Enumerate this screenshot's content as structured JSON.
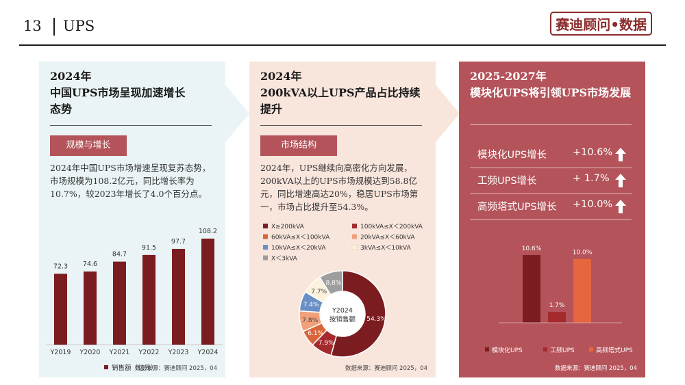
{
  "header": {
    "page_number": "13",
    "title": "UPS",
    "brand": "赛迪顾问•数据"
  },
  "panel1": {
    "year": "2024年",
    "title_lines": [
      "中国UPS市场呈现加速增长",
      "态势"
    ],
    "tag": "规模与增长",
    "body": "2024年中国UPS市场增速呈现复苏态势，市场规模为108.2亿元，同比增长率为10.7%，较2023年增长了4.0个百分点。",
    "source": "数据来源：赛迪顾问   2025，04"
  },
  "panel2": {
    "year": "2024年",
    "title_lines": [
      "200kVA以上UPS产品占比持续",
      "提升"
    ],
    "tag": "市场结构",
    "body": "2024年，UPS继续向高密化方向发展，200kVA以上的UPS市场规模达到58.8亿元，同比增速高达20%，稳居UPS市场第一，市场占比提升至54.3%。",
    "source": "数据来源：赛迪顾问   2025，04"
  },
  "panel3": {
    "year": "2025-2027年",
    "title_lines": [
      "模块化UPS将引领UPS市场发展"
    ],
    "metrics": [
      {
        "label": "模块化UPS增长",
        "value": "+10.6%",
        "icon": "up-arrow-icon"
      },
      {
        "label": "工频UPS增长",
        "value": "+ 1.7%",
        "icon": "up-arrow-icon"
      },
      {
        "label": "高频塔式UPS增长",
        "value": "+10.0%",
        "icon": "up-arrow-icon"
      }
    ],
    "source": "数据来源：赛迪顾问   2025，04"
  },
  "colors": {
    "dark_red": "#7b1d20",
    "panel_red": "#b4535a",
    "panel_blue": "#eaf4f6",
    "panel_peach": "#f8e5dc"
  },
  "chart_data": [
    {
      "type": "bar",
      "title": "",
      "categories": [
        "Y2019",
        "Y2020",
        "Y2021",
        "Y2022",
        "Y2023",
        "Y2024"
      ],
      "series": [
        {
          "name": "销售额（亿元）",
          "values": [
            72.3,
            74.6,
            84.7,
            91.5,
            97.7,
            108.2
          ]
        }
      ],
      "value_labels": [
        "72.3",
        "74.6",
        "84.7",
        "91.5",
        "97.7",
        "108.2"
      ],
      "legend": [
        "销售额（亿元）"
      ],
      "ylim": [
        0,
        120
      ],
      "color": "#7b1d20"
    },
    {
      "type": "pie",
      "donut": true,
      "center_lines": [
        "Y2024",
        "按销售额"
      ],
      "legend": [
        {
          "name": "X≥200kVA",
          "color": "#7b1d20"
        },
        {
          "name": "100kVA≤X＜200kVA",
          "color": "#a42a2e"
        },
        {
          "name": "60kVA≤X＜100kVA",
          "color": "#d9663a"
        },
        {
          "name": "20kVA≤X＜60kVA",
          "color": "#f0a07a"
        },
        {
          "name": "10kVA≤X＜20kVA",
          "color": "#6a8fc6"
        },
        {
          "name": "3kVA≤X＜10kVA",
          "color": "#fbf1dc"
        },
        {
          "name": "X＜3kVA",
          "color": "#9e9e9e"
        }
      ],
      "slices": [
        {
          "name": "X≥200kVA",
          "value": 54.3,
          "label": "54.3%",
          "color": "#7b1d20"
        },
        {
          "name": "100kVA≤X＜200kVA",
          "value": 7.9,
          "label": "7.9%",
          "color": "#a42a2e"
        },
        {
          "name": "60kVA≤X＜100kVA",
          "value": 6.1,
          "label": "6.1%",
          "color": "#d9663a"
        },
        {
          "name": "20kVA≤X＜60kVA",
          "value": 7.8,
          "label": "7.8%",
          "color": "#f0a07a"
        },
        {
          "name": "10kVA≤X＜20kVA",
          "value": 7.4,
          "label": "7.4%",
          "color": "#6a8fc6"
        },
        {
          "name": "3kVA≤X＜10kVA",
          "value": 7.7,
          "label": "7.7%",
          "color": "#fbf1dc"
        },
        {
          "name": "X＜3kVA",
          "value": 8.8,
          "label": "8.8%",
          "color": "#9e9e9e"
        }
      ]
    },
    {
      "type": "bar",
      "title": "",
      "categories": [
        "模块化UPS",
        "工频UPS",
        "高频塔式UPS"
      ],
      "values": [
        10.6,
        1.7,
        10.0
      ],
      "value_labels": [
        "10.6%",
        "1.7%",
        "10.0%"
      ],
      "colors": [
        "#7b1d20",
        "#a42a2e",
        "#e5663f"
      ],
      "ylim": [
        0,
        12
      ]
    }
  ]
}
